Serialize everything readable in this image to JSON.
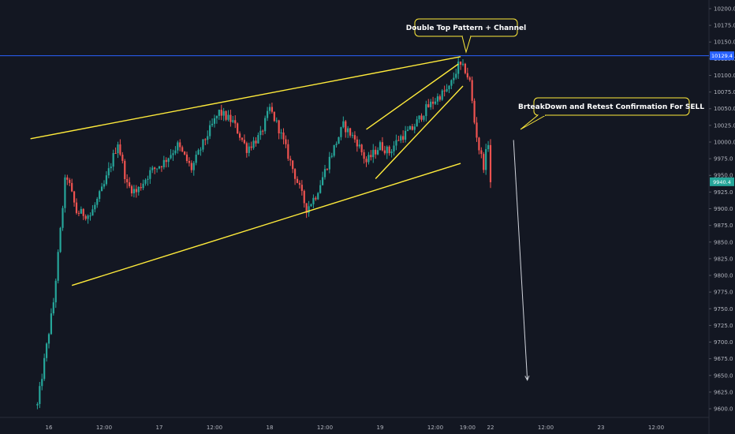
{
  "chart_data": {
    "type": "candlestick",
    "ylim": [
      9587,
      10213
    ],
    "y_ticks": [
      9600,
      9625,
      9650,
      9675,
      9700,
      9725,
      9750,
      9775,
      9800,
      9825,
      9850,
      9875,
      9900,
      9925,
      9950,
      9975,
      10000,
      10025,
      10050,
      10075,
      10100,
      10125,
      10150,
      10175,
      10200
    ],
    "y_tick_labels": [
      "9600.0",
      "9625.0",
      "9650.0",
      "9675.0",
      "9700.0",
      "9725.0",
      "9750.0",
      "9775.0",
      "9800.0",
      "9825.0",
      "9850.0",
      "9875.0",
      "9900.0",
      "9925.0",
      "9950.0",
      "9975.0",
      "10000.0",
      "10025.0",
      "10050.0",
      "10075.0",
      "10100.0",
      "10125.0",
      "10150.0",
      "10175.0",
      "10200.0"
    ],
    "x_ticks": [
      {
        "label": "16",
        "hours": 0
      },
      {
        "label": "12:00",
        "hours": 12
      },
      {
        "label": "17",
        "hours": 24
      },
      {
        "label": "12:00",
        "hours": 36
      },
      {
        "label": "18",
        "hours": 48
      },
      {
        "label": "12:00",
        "hours": 60
      },
      {
        "label": "19",
        "hours": 72
      },
      {
        "label": "12:00",
        "hours": 84
      },
      {
        "label": "19:00",
        "hours": 91
      },
      {
        "label": "22",
        "hours": 96
      },
      {
        "label": "12:00",
        "hours": 108
      },
      {
        "label": "23",
        "hours": 120
      },
      {
        "label": "12:00",
        "hours": 132
      }
    ],
    "price_line": {
      "value": 10129.4,
      "label": "10129.4",
      "color": "#2962ff"
    },
    "last_price": {
      "value": 9940.4,
      "label": "9940.4",
      "color": "#26a69a"
    },
    "colors": {
      "up": "#26a69a",
      "down": "#ef5350",
      "trendline": "#ffeb3b",
      "arrow": "#d1d4dc"
    },
    "key_points": [
      {
        "hours": -2.5,
        "price": 9605
      },
      {
        "hours": 1,
        "price": 9760
      },
      {
        "hours": 2,
        "price": 9830
      },
      {
        "hours": 3.7,
        "price": 9955
      },
      {
        "hours": 6,
        "price": 9895
      },
      {
        "hours": 9,
        "price": 9890
      },
      {
        "hours": 12,
        "price": 9935
      },
      {
        "hours": 15,
        "price": 10000
      },
      {
        "hours": 17,
        "price": 9935
      },
      {
        "hours": 19,
        "price": 9925
      },
      {
        "hours": 22,
        "price": 9955
      },
      {
        "hours": 25,
        "price": 9970
      },
      {
        "hours": 28,
        "price": 9995
      },
      {
        "hours": 31,
        "price": 9960
      },
      {
        "hours": 34,
        "price": 10005
      },
      {
        "hours": 37,
        "price": 10045
      },
      {
        "hours": 40,
        "price": 10030
      },
      {
        "hours": 43,
        "price": 9990
      },
      {
        "hours": 46,
        "price": 10010
      },
      {
        "hours": 48,
        "price": 10050
      },
      {
        "hours": 50,
        "price": 10020
      },
      {
        "hours": 53,
        "price": 9960
      },
      {
        "hours": 56,
        "price": 9900
      },
      {
        "hours": 58,
        "price": 9920
      },
      {
        "hours": 61,
        "price": 9975
      },
      {
        "hours": 64,
        "price": 10025
      },
      {
        "hours": 67,
        "price": 10000
      },
      {
        "hours": 69,
        "price": 9970
      },
      {
        "hours": 72,
        "price": 9995
      },
      {
        "hours": 74,
        "price": 9985
      },
      {
        "hours": 76,
        "price": 10005
      },
      {
        "hours": 79,
        "price": 10020
      },
      {
        "hours": 82,
        "price": 10050
      },
      {
        "hours": 85,
        "price": 10070
      },
      {
        "hours": 87,
        "price": 10080
      },
      {
        "hours": 89,
        "price": 10115
      },
      {
        "hours": 90.5,
        "price": 10108
      },
      {
        "hours": 91.5,
        "price": 10090
      },
      {
        "hours": 92.5,
        "price": 10030
      },
      {
        "hours": 93.5,
        "price": 9990
      },
      {
        "hours": 94.5,
        "price": 9965
      },
      {
        "hours": 95.5,
        "price": 10000
      },
      {
        "hours": 96,
        "price": 9940
      }
    ],
    "annotations": {
      "pattern": "Double Top Pattern + Channel",
      "signal": "BrteakDown and Retest Confirmation For SELL"
    },
    "trendlines": [
      {
        "from": {
          "hours": -4,
          "price": 10005
        },
        "to": {
          "hours": 89.5,
          "price": 10128
        }
      },
      {
        "from": {
          "hours": 5,
          "price": 9785
        },
        "to": {
          "hours": 89.5,
          "price": 9968
        }
      },
      {
        "from": {
          "hours": 69,
          "price": 10019
        },
        "to": {
          "hours": 89,
          "price": 10117
        }
      },
      {
        "from": {
          "hours": 71,
          "price": 9945
        },
        "to": {
          "hours": 90,
          "price": 10084
        }
      }
    ],
    "arrow": {
      "from": {
        "hours": 101,
        "price": 10003
      },
      "to": {
        "hours": 104,
        "price": 9643
      }
    }
  }
}
